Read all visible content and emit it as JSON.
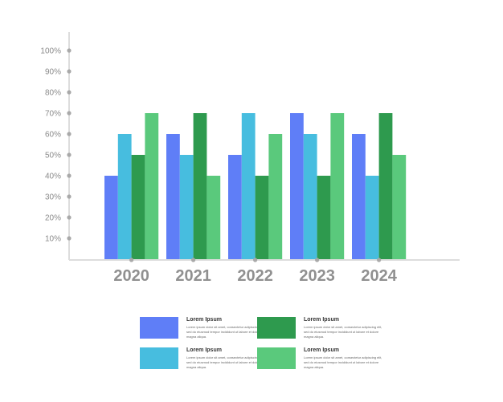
{
  "chart_data": {
    "type": "bar",
    "title": "",
    "xlabel": "",
    "ylabel": "",
    "categories": [
      "2020",
      "2021",
      "2022",
      "2023",
      "2024"
    ],
    "y_ticks": [
      "10%",
      "20%",
      "30%",
      "40%",
      "50%",
      "60%",
      "70%",
      "80%",
      "90%",
      "100%"
    ],
    "ylim": [
      0,
      100
    ],
    "grid": false,
    "series": [
      {
        "values": [
          40,
          60,
          50,
          70,
          60
        ],
        "color": "#5f7ef7"
      },
      {
        "values": [
          60,
          50,
          70,
          60,
          40
        ],
        "color": "#47bddf"
      },
      {
        "values": [
          50,
          70,
          40,
          40,
          70
        ],
        "color": "#2e9a4e"
      },
      {
        "values": [
          70,
          40,
          60,
          70,
          50
        ],
        "color": "#5ac97c"
      }
    ],
    "colors": {
      "axis": "#dddddd",
      "tick_dot": "#a9a9a9",
      "tick_label": "#8a8a8a",
      "category_label": "#909090"
    }
  },
  "legend": [
    {
      "title": "Lorem Ipsum",
      "desc": "Lorem ipsum dolor sit amet, consectetur adipiscing elit, sed do eiusmod tempor incididunt ut labore et dolore magna aliqua.",
      "color": "#5f7ef7"
    },
    {
      "title": "Lorem Ipsum",
      "desc": "Lorem ipsum dolor sit amet, consectetur adipiscing elit, sed do eiusmod tempor incididunt ut labore et dolore magna aliqua.",
      "color": "#2e9a4e"
    },
    {
      "title": "Lorem Ipsum",
      "desc": "Lorem ipsum dolor sit amet, consectetur adipiscing elit, sed do eiusmod tempor incididunt ut labore et dolore magna aliqua.",
      "color": "#47bddf"
    },
    {
      "title": "Lorem Ipsum",
      "desc": "Lorem ipsum dolor sit amet, consectetur adipiscing elit, sed do eiusmod tempor incididunt ut labore et dolore magna aliqua.",
      "color": "#5ac97c"
    }
  ]
}
